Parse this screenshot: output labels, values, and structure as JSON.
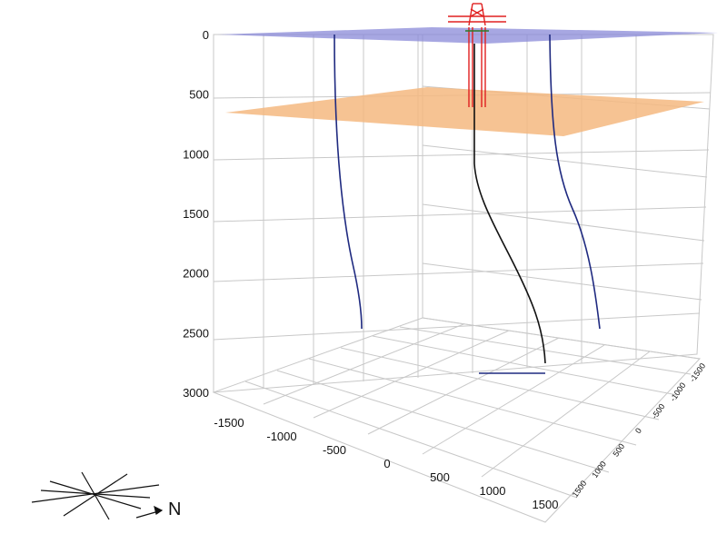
{
  "chart_data": {
    "type": "scatter",
    "title": "",
    "xlabel": "",
    "ylabel": "",
    "z_axis": {
      "min": 0,
      "max": 3000,
      "ticks": [
        "0",
        "500",
        "1000",
        "1500",
        "2000",
        "2500",
        "3000"
      ]
    },
    "x_axis": {
      "min": -1500,
      "max": 1500,
      "ticks": [
        "-1500",
        "-1000",
        "-500",
        "0",
        "500",
        "1000",
        "1500"
      ]
    },
    "y_axis": {
      "min": -1500,
      "max": 1500,
      "ticks": [
        "1500",
        "1000",
        "500",
        "0",
        "-500",
        "-1000",
        "-1500"
      ]
    },
    "grid": true,
    "surfaces": [
      {
        "name": "",
        "depth": 0,
        "color": "#8a8ad8"
      },
      {
        "name": "",
        "depth": 600,
        "color": "#f4b880"
      }
    ],
    "wells": [
      {
        "name": "",
        "color": "#1f2a80",
        "depth_range": [
          0,
          2500
        ]
      },
      {
        "name": "",
        "color": "#111111",
        "depth_range": [
          0,
          2800
        ]
      },
      {
        "name": "",
        "color": "#1f2a80",
        "depth_range": [
          0,
          2500
        ]
      }
    ],
    "rig": {
      "color": "#e02020"
    },
    "compass": {
      "label": "N"
    }
  }
}
